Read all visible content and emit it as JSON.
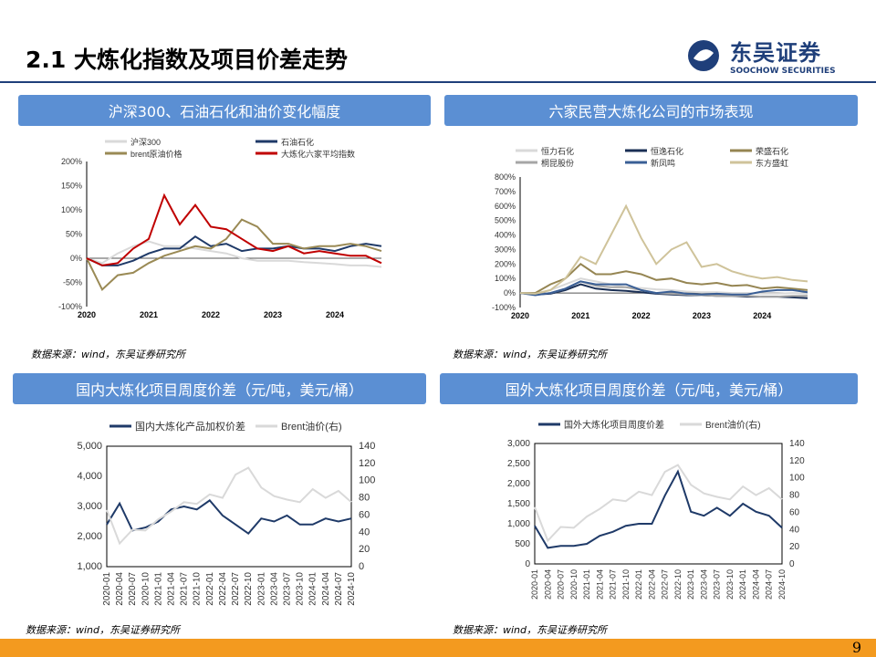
{
  "header": {
    "title": "2.1 大炼化指数及项目价差走势",
    "logo_cn": "东吴证券",
    "logo_en": "SOOCHOW SECURITIES"
  },
  "page_number": "9",
  "colors": {
    "accent": "#1f3f7a",
    "panel": "#5b8fd3",
    "footer": "#f39a1f"
  },
  "panels": [
    {
      "title": "沪深300、石油石化和油价变化幅度",
      "source": "数据来源：wind，东吴证券研究所"
    },
    {
      "title": "六家民营大炼化公司的市场表现",
      "source": "数据来源：wind，东吴证券研究所"
    },
    {
      "title": "国内大炼化项目周度价差（元/吨，美元/桶）",
      "source": "数据来源：wind，东吴证券研究所"
    },
    {
      "title": "国外大炼化项目周度价差（元/吨，美元/桶）",
      "source": "数据来源：wind，东吴证券研究所"
    }
  ],
  "chart_data": [
    {
      "type": "line",
      "x": [
        "2020-01",
        "2020-04",
        "2020-07",
        "2020-10",
        "2021-01",
        "2021-04",
        "2021-07",
        "2021-10",
        "2022-01",
        "2022-04",
        "2022-07",
        "2022-10",
        "2023-01",
        "2023-04",
        "2023-07",
        "2023-10",
        "2024-01",
        "2024-04",
        "2024-07",
        "2024-10"
      ],
      "xticks": [
        "2020",
        "2021",
        "2022",
        "2023",
        "2024"
      ],
      "yticks": [
        "-100%",
        "-50%",
        "0%",
        "50%",
        "100%",
        "150%",
        "200%"
      ],
      "ylim": [
        -100,
        200
      ],
      "series": [
        {
          "name": "沪深300",
          "color": "#d9d9d9",
          "values": [
            0,
            -10,
            10,
            25,
            35,
            25,
            25,
            20,
            15,
            10,
            0,
            -5,
            -5,
            -5,
            -8,
            -10,
            -12,
            -15,
            -15,
            -18
          ]
        },
        {
          "name": "石油石化",
          "color": "#1f3a68",
          "values": [
            0,
            -15,
            -15,
            -5,
            10,
            20,
            20,
            45,
            25,
            30,
            15,
            20,
            20,
            25,
            20,
            20,
            15,
            25,
            30,
            25
          ]
        },
        {
          "name": "brent原油价格",
          "color": "#9a8a55",
          "values": [
            0,
            -65,
            -35,
            -30,
            -10,
            5,
            15,
            25,
            20,
            40,
            80,
            65,
            30,
            30,
            20,
            25,
            25,
            30,
            25,
            15
          ]
        },
        {
          "name": "大炼化六家平均指数",
          "color": "#c00000",
          "values": [
            0,
            -15,
            -10,
            20,
            40,
            130,
            70,
            110,
            65,
            60,
            40,
            20,
            15,
            25,
            10,
            15,
            10,
            5,
            5,
            -10
          ]
        }
      ]
    },
    {
      "type": "line",
      "x": [
        "2020-01",
        "2020-04",
        "2020-07",
        "2020-10",
        "2021-01",
        "2021-04",
        "2021-07",
        "2021-10",
        "2022-01",
        "2022-04",
        "2022-07",
        "2022-10",
        "2023-01",
        "2023-04",
        "2023-07",
        "2023-10",
        "2024-01",
        "2024-04",
        "2024-07",
        "2024-10"
      ],
      "xticks": [
        "2020",
        "2021",
        "2022",
        "2023",
        "2024"
      ],
      "yticks": [
        "-100%",
        "0%",
        "100%",
        "200%",
        "300%",
        "400%",
        "500%",
        "600%",
        "700%",
        "800%"
      ],
      "ylim": [
        -100,
        800
      ],
      "series": [
        {
          "name": "恒力石化",
          "color": "#d9d9d9",
          "values": [
            0,
            -5,
            20,
            60,
            100,
            80,
            60,
            40,
            35,
            25,
            20,
            10,
            5,
            5,
            0,
            0,
            -5,
            -5,
            0,
            -5
          ]
        },
        {
          "name": "恒逸石化",
          "color": "#1a2f55",
          "values": [
            0,
            -10,
            -5,
            20,
            60,
            30,
            20,
            15,
            5,
            -5,
            -10,
            -15,
            -15,
            -20,
            -20,
            -25,
            -25,
            -25,
            -30,
            -35
          ]
        },
        {
          "name": "荣盛石化",
          "color": "#958552",
          "values": [
            0,
            0,
            60,
            100,
            200,
            130,
            130,
            150,
            130,
            90,
            100,
            70,
            60,
            70,
            50,
            55,
            30,
            40,
            30,
            20
          ]
        },
        {
          "name": "桐昆股份",
          "color": "#a6a6a6",
          "values": [
            0,
            -10,
            0,
            30,
            80,
            50,
            40,
            40,
            20,
            0,
            -5,
            -10,
            -15,
            -20,
            -20,
            -20,
            -25,
            -25,
            -20,
            -20
          ]
        },
        {
          "name": "新凤鸣",
          "color": "#3a5f96",
          "values": [
            0,
            -15,
            0,
            30,
            80,
            60,
            60,
            60,
            20,
            0,
            10,
            -5,
            -10,
            -5,
            -10,
            -10,
            10,
            20,
            20,
            5
          ]
        },
        {
          "name": "东方盛虹",
          "color": "#cfc39a",
          "values": [
            0,
            -5,
            20,
            100,
            250,
            200,
            400,
            600,
            380,
            200,
            300,
            350,
            180,
            200,
            150,
            120,
            100,
            110,
            90,
            80
          ]
        }
      ]
    },
    {
      "type": "line",
      "x": [
        "2020-01",
        "2020-04",
        "2020-07",
        "2020-10",
        "2021-01",
        "2021-04",
        "2021-07",
        "2021-10",
        "2022-01",
        "2022-04",
        "2022-07",
        "2022-10",
        "2023-01",
        "2023-04",
        "2023-07",
        "2023-10",
        "2024-01",
        "2024-04",
        "2024-07",
        "2024-10"
      ],
      "xticks": [
        "2020-01",
        "2020-04",
        "2020-07",
        "2020-10",
        "2021-01",
        "2021-04",
        "2021-07",
        "2021-10",
        "2022-01",
        "2022-04",
        "2022-07",
        "2022-10",
        "2023-01",
        "2023-04",
        "2023-07",
        "2023-10",
        "2024-01",
        "2024-04",
        "2024-07",
        "2024-10"
      ],
      "yticks": [
        "1,000",
        "2,000",
        "3,000",
        "4,000",
        "5,000"
      ],
      "ylim": [
        1000,
        5000
      ],
      "y2ticks": [
        "0",
        "20",
        "40",
        "60",
        "80",
        "100",
        "120",
        "140"
      ],
      "y2lim": [
        0,
        140
      ],
      "series": [
        {
          "name": "国内大炼化产品加权价差",
          "color": "#1f3a68",
          "axis": "left",
          "values": [
            2400,
            3100,
            2200,
            2300,
            2500,
            2900,
            3000,
            2900,
            3200,
            2700,
            2400,
            2100,
            2600,
            2500,
            2700,
            2400,
            2400,
            2600,
            2500,
            2600
          ]
        },
        {
          "name": "Brent油价(右)",
          "color": "#d9d9d9",
          "axis": "right",
          "values": [
            66,
            27,
            43,
            42,
            55,
            64,
            75,
            73,
            84,
            80,
            107,
            115,
            92,
            82,
            78,
            75,
            90,
            80,
            88,
            75
          ]
        }
      ]
    },
    {
      "type": "line",
      "x": [
        "2020-01",
        "2020-04",
        "2020-07",
        "2020-10",
        "2021-01",
        "2021-04",
        "2021-07",
        "2021-10",
        "2022-01",
        "2022-04",
        "2022-07",
        "2022-10",
        "2023-01",
        "2023-04",
        "2023-07",
        "2023-10",
        "2024-01",
        "2024-04",
        "2024-07",
        "2024-10"
      ],
      "xticks": [
        "2020-01",
        "2020-04",
        "2020-07",
        "2020-10",
        "2021-01",
        "2021-04",
        "2021-07",
        "2021-10",
        "2022-01",
        "2022-04",
        "2022-07",
        "2022-10",
        "2023-01",
        "2023-04",
        "2023-07",
        "2023-10",
        "2024-01",
        "2024-04",
        "2024-07",
        "2024-10"
      ],
      "yticks": [
        "0",
        "500",
        "1,000",
        "1,500",
        "2,000",
        "2,500",
        "3,000"
      ],
      "ylim": [
        0,
        3000
      ],
      "y2ticks": [
        "0",
        "20",
        "40",
        "60",
        "80",
        "100",
        "120",
        "140"
      ],
      "y2lim": [
        0,
        140
      ],
      "series": [
        {
          "name": "国外大炼化项目周度价差",
          "color": "#1f3a68",
          "axis": "left",
          "values": [
            950,
            400,
            450,
            450,
            500,
            700,
            800,
            950,
            1000,
            1000,
            1700,
            2300,
            1300,
            1200,
            1400,
            1200,
            1500,
            1300,
            1200,
            900
          ]
        },
        {
          "name": "Brent油价(右)",
          "color": "#d9d9d9",
          "axis": "right",
          "values": [
            66,
            27,
            43,
            42,
            55,
            64,
            75,
            73,
            84,
            80,
            107,
            115,
            92,
            82,
            78,
            75,
            90,
            80,
            88,
            75
          ]
        }
      ]
    }
  ]
}
